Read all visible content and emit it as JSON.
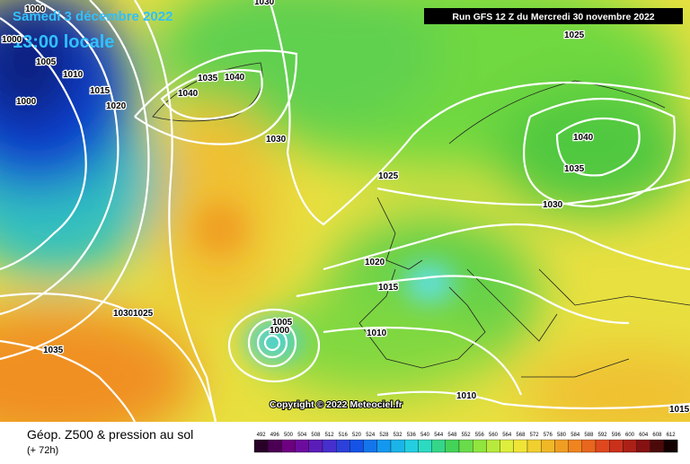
{
  "header": {
    "date": "Samedi 3 décembre 2022",
    "time": "13:00 locale",
    "run": "Run GFS 12 Z du Mercredi 30 novembre 2022"
  },
  "isobar_labels": [
    "1000",
    "1030",
    "1000",
    "1025",
    "1005",
    "1010",
    "1015",
    "1020",
    "1000",
    "1040",
    "1035",
    "1040",
    "1030",
    "1040",
    "1035",
    "1025",
    "1030",
    "1020",
    "1015",
    "1030",
    "1025",
    "1005",
    "1000",
    "1010",
    "1035",
    "1010",
    "1015"
  ],
  "footer": {
    "title": "Géop. Z500 & pression au sol",
    "lead": "(+ 72h)",
    "copyright": "Copyright © 2022 Meteociel.fr"
  },
  "colorbar": {
    "ticks": [
      492,
      496,
      500,
      504,
      508,
      512,
      516,
      520,
      524,
      528,
      532,
      536,
      540,
      544,
      548,
      552,
      556,
      560,
      564,
      568,
      572,
      576,
      580,
      584,
      588,
      592,
      596,
      600,
      604,
      608,
      612
    ]
  }
}
